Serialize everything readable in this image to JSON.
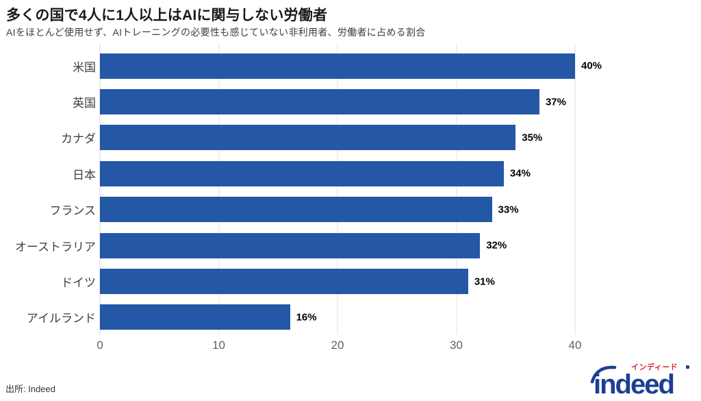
{
  "title": "多くの国で4人に1人以上はAIに関与しない労働者",
  "subtitle": "AIをほとんど使用せず、AIトレーニングの必要性も感じていない非利用者、労働者に占める割合",
  "source": "出所: Indeed",
  "logo": {
    "wordmark": "indeed",
    "katakana": "インディード"
  },
  "colors": {
    "bar": "#2557a7",
    "gridline": "#dee1e6",
    "title_text": "#191919",
    "subtitle_text": "#3d3d3d",
    "category_text": "#3f3f3f",
    "tick_text": "#616161",
    "value_text": "#000000",
    "logo_blue": "#1c3e94",
    "logo_red": "#d7282f"
  },
  "chart_data": {
    "type": "bar",
    "orientation": "horizontal",
    "title": "多くの国で4人に1人以上はAIに関与しない労働者",
    "subtitle": "AIをほとんど使用せず、AIトレーニングの必要性も感じていない非利用者、労働者に占める割合",
    "categories": [
      "米国",
      "英国",
      "カナダ",
      "日本",
      "フランス",
      "オーストラリア",
      "ドイツ",
      "アイルランド"
    ],
    "values": [
      40,
      37,
      35,
      34,
      33,
      32,
      31,
      16
    ],
    "value_labels": [
      "40%",
      "37%",
      "35%",
      "34%",
      "33%",
      "32%",
      "31%",
      "16%"
    ],
    "x_ticks": [
      0,
      10,
      20,
      30,
      40
    ],
    "xlim": [
      0,
      40
    ],
    "xlabel": "",
    "ylabel": "",
    "grid": "vertical",
    "legend": "none",
    "source": "Indeed"
  }
}
